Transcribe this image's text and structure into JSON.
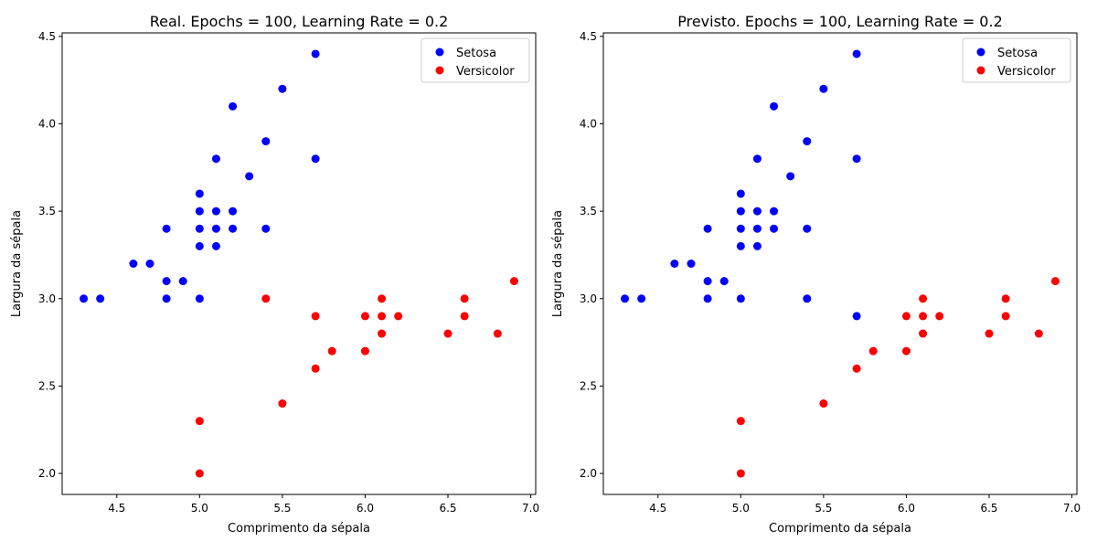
{
  "chart_data": [
    {
      "type": "scatter",
      "title": "Real. Epochs = 100, Learning Rate = 0.2",
      "xlabel": "Comprimento da sépala",
      "ylabel": "Largura da sépala",
      "xlim": [
        4.17,
        7.03
      ],
      "ylim": [
        1.88,
        4.52
      ],
      "xticks": [
        4.5,
        5.0,
        5.5,
        6.0,
        6.5,
        7.0
      ],
      "xtick_labels": [
        "4.5",
        "5.0",
        "5.5",
        "6.0",
        "6.5",
        "7.0"
      ],
      "yticks": [
        2.0,
        2.5,
        3.0,
        3.5,
        4.0,
        4.5
      ],
      "ytick_labels": [
        "2.0",
        "2.5",
        "3.0",
        "3.5",
        "4.0",
        "4.5"
      ],
      "grid": false,
      "legend": "top-right",
      "series": [
        {
          "name": "Setosa",
          "color": "#0000ff",
          "x": [
            4.3,
            4.4,
            4.6,
            4.7,
            4.8,
            4.8,
            4.8,
            4.9,
            5.0,
            5.0,
            5.0,
            5.0,
            5.0,
            5.1,
            5.1,
            5.1,
            5.1,
            5.2,
            5.2,
            5.2,
            5.3,
            5.4,
            5.4,
            5.5,
            5.7,
            5.7
          ],
          "y": [
            3.0,
            3.0,
            3.2,
            3.2,
            3.4,
            3.1,
            3.0,
            3.1,
            3.6,
            3.5,
            3.4,
            3.3,
            3.0,
            3.8,
            3.5,
            3.4,
            3.3,
            4.1,
            3.5,
            3.4,
            3.7,
            3.9,
            3.4,
            4.2,
            4.4,
            3.8
          ]
        },
        {
          "name": "Versicolor",
          "color": "#ff0000",
          "x": [
            5.0,
            5.0,
            5.4,
            5.5,
            5.7,
            5.7,
            5.8,
            6.0,
            6.0,
            6.1,
            6.1,
            6.1,
            6.2,
            6.5,
            6.6,
            6.6,
            6.8,
            6.9
          ],
          "y": [
            2.3,
            2.0,
            3.0,
            2.4,
            2.9,
            2.6,
            2.7,
            2.9,
            2.7,
            3.0,
            2.9,
            2.8,
            2.9,
            2.8,
            3.0,
            2.9,
            2.8,
            3.1
          ]
        }
      ]
    },
    {
      "type": "scatter",
      "title": "Previsto. Epochs = 100, Learning Rate = 0.2",
      "xlabel": "Comprimento da sépala",
      "ylabel": "Largura da sépala",
      "xlim": [
        4.17,
        7.03
      ],
      "ylim": [
        1.88,
        4.52
      ],
      "xticks": [
        4.5,
        5.0,
        5.5,
        6.0,
        6.5,
        7.0
      ],
      "xtick_labels": [
        "4.5",
        "5.0",
        "5.5",
        "6.0",
        "6.5",
        "7.0"
      ],
      "yticks": [
        2.0,
        2.5,
        3.0,
        3.5,
        4.0,
        4.5
      ],
      "ytick_labels": [
        "2.0",
        "2.5",
        "3.0",
        "3.5",
        "4.0",
        "4.5"
      ],
      "grid": false,
      "legend": "top-right",
      "series": [
        {
          "name": "Setosa",
          "color": "#0000ff",
          "x": [
            4.3,
            4.4,
            4.6,
            4.7,
            4.8,
            4.8,
            4.8,
            4.9,
            5.0,
            5.0,
            5.0,
            5.0,
            5.0,
            5.1,
            5.1,
            5.1,
            5.1,
            5.2,
            5.2,
            5.2,
            5.3,
            5.4,
            5.4,
            5.4,
            5.5,
            5.7,
            5.7,
            5.7
          ],
          "y": [
            3.0,
            3.0,
            3.2,
            3.2,
            3.4,
            3.1,
            3.0,
            3.1,
            3.6,
            3.5,
            3.4,
            3.3,
            3.0,
            3.8,
            3.5,
            3.4,
            3.3,
            4.1,
            3.5,
            3.4,
            3.7,
            3.9,
            3.4,
            3.0,
            4.2,
            4.4,
            3.8,
            2.9
          ]
        },
        {
          "name": "Versicolor",
          "color": "#ff0000",
          "x": [
            5.0,
            5.0,
            5.5,
            5.7,
            5.8,
            6.0,
            6.0,
            6.1,
            6.1,
            6.1,
            6.2,
            6.5,
            6.6,
            6.6,
            6.8,
            6.9
          ],
          "y": [
            2.3,
            2.0,
            2.4,
            2.6,
            2.7,
            2.9,
            2.7,
            3.0,
            2.9,
            2.8,
            2.9,
            2.8,
            3.0,
            2.9,
            2.8,
            3.1
          ]
        }
      ]
    }
  ]
}
